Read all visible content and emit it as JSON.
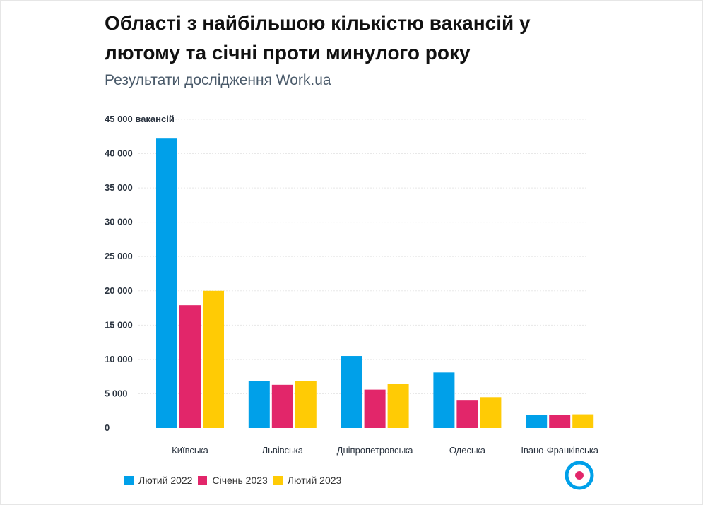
{
  "title": "Області з найбільшою кількістю вакансій у лютому та січні проти минулого року",
  "subtitle": "Результати дослідження Work.ua",
  "colors": {
    "series_0": "#00a0e9",
    "series_1": "#e2266a",
    "series_2": "#ffcb05",
    "grid": "#e8e8e8",
    "logo_ring": "#00a0e9",
    "logo_dot": "#e2266a"
  },
  "logo_icon": "workua-logo-icon",
  "chart_data": {
    "type": "bar",
    "categories": [
      "Київська",
      "Львівська",
      "Дніпропетровська",
      "Одеська",
      "Івано-Франківська"
    ],
    "series": [
      {
        "name": "Лютий 2022",
        "values": [
          42200,
          6800,
          10500,
          8100,
          1900
        ]
      },
      {
        "name": "Січень 2023",
        "values": [
          17900,
          6300,
          5600,
          4000,
          1900
        ]
      },
      {
        "name": "Лютий 2023",
        "values": [
          20000,
          6900,
          6400,
          4500,
          2000
        ]
      }
    ],
    "y_ticks": [
      "0",
      "5 000",
      "10 000",
      "15 000",
      "20 000",
      "25 000",
      "30 000",
      "35 000",
      "40 000",
      "45 000 вакансій"
    ],
    "ylim": [
      0,
      45000
    ],
    "grid": true,
    "legend_position": "bottom-left"
  }
}
